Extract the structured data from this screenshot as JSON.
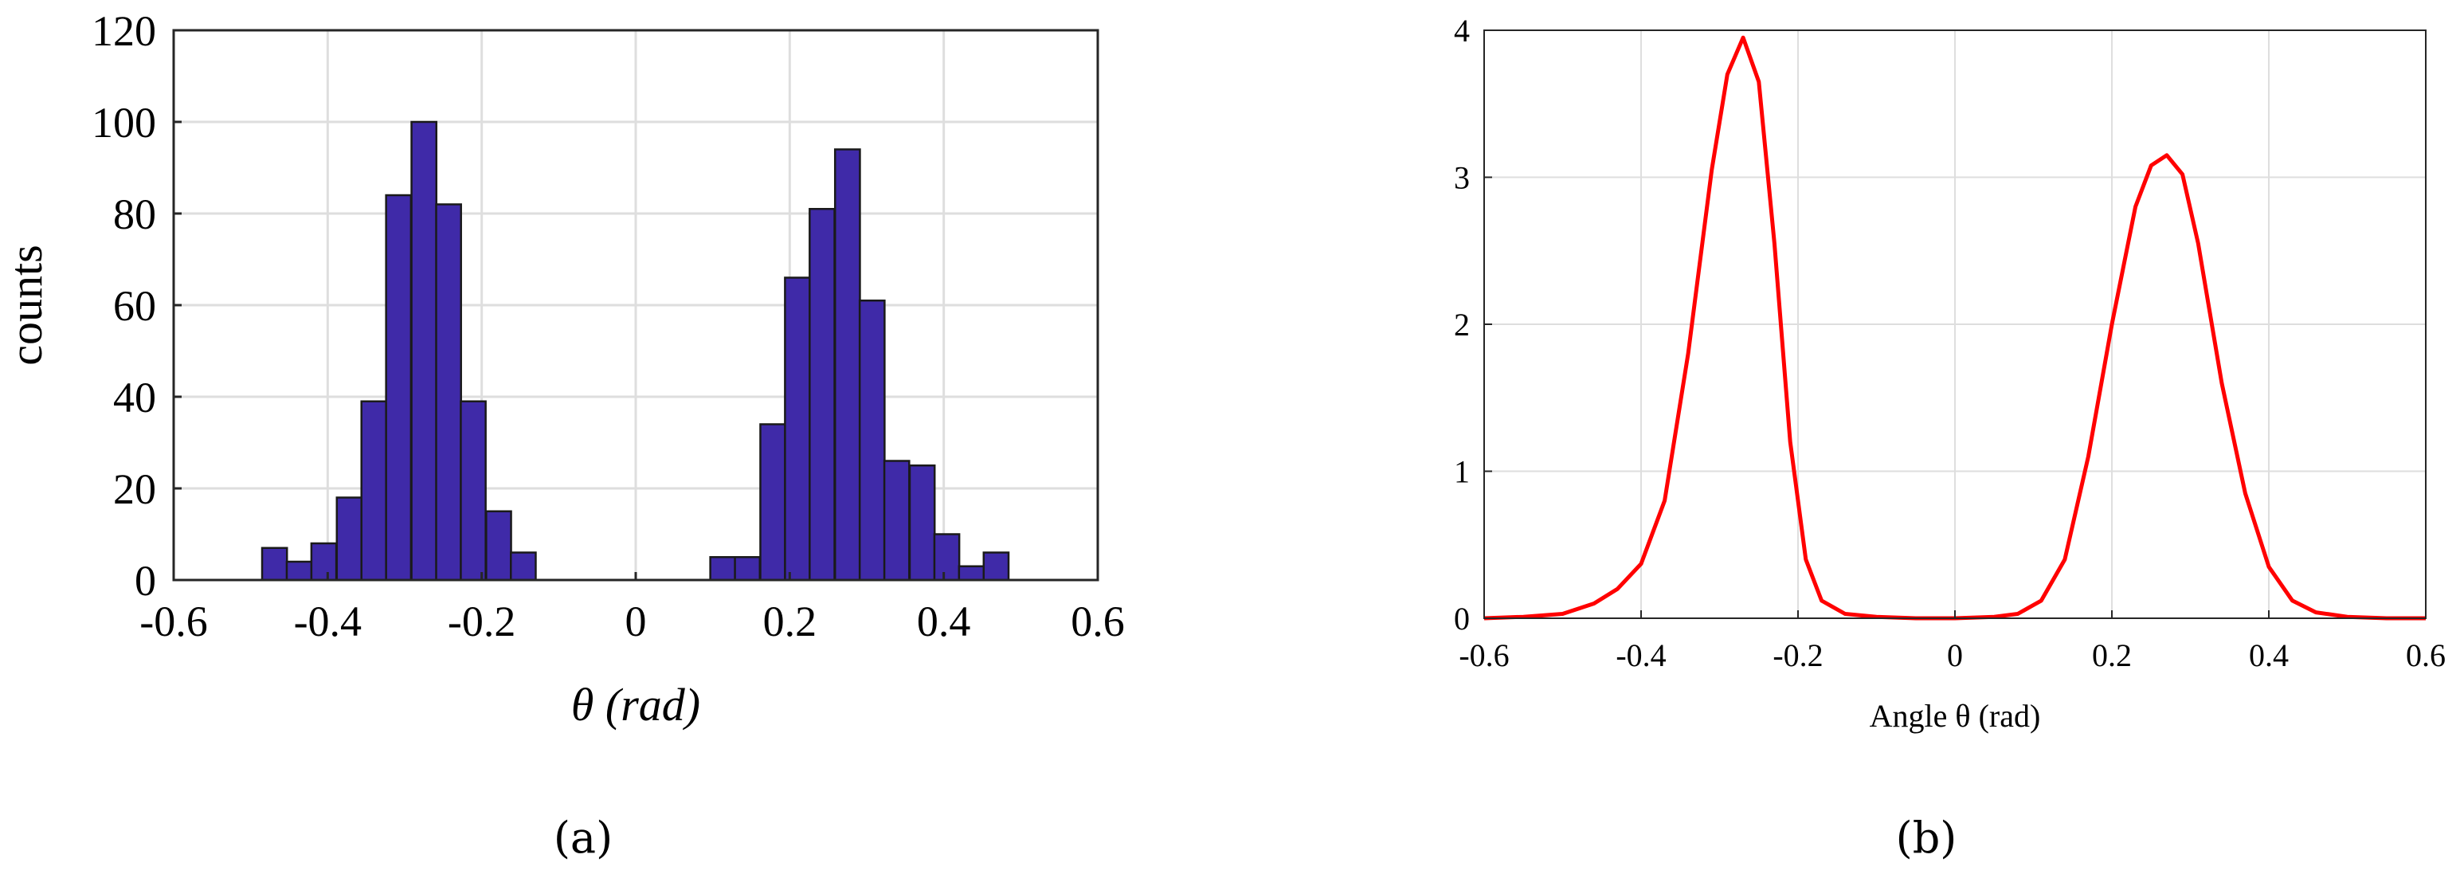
{
  "panel_a": {
    "caption": "(a)"
  },
  "panel_b": {
    "caption": "(b)"
  },
  "chart_data": [
    {
      "type": "bar",
      "xlabel": "θ (rad)",
      "ylabel": "counts",
      "xlim": [
        -0.6,
        0.6
      ],
      "ylim": [
        0,
        120
      ],
      "xticks": [
        "-0.6",
        "-0.4",
        "-0.2",
        "0",
        "0.2",
        "0.4",
        "0.6"
      ],
      "yticks": [
        "0",
        "20",
        "40",
        "60",
        "80",
        "100",
        "120"
      ],
      "grid": true,
      "bar_color": "#3f2aa8",
      "bin_width": 0.0323,
      "bin_centers": [
        -0.469,
        -0.437,
        -0.405,
        -0.372,
        -0.34,
        -0.308,
        -0.275,
        -0.243,
        -0.211,
        -0.178,
        -0.146,
        0.113,
        0.145,
        0.178,
        0.21,
        0.242,
        0.275,
        0.307,
        0.339,
        0.372,
        0.404,
        0.436,
        0.468
      ],
      "values": [
        7,
        4,
        8,
        18,
        39,
        84,
        100,
        82,
        39,
        15,
        6,
        5,
        5,
        34,
        66,
        81,
        94,
        61,
        26,
        25,
        10,
        3,
        6
      ]
    },
    {
      "type": "line",
      "xlabel": "Angle θ (rad)",
      "ylabel": "",
      "xlim": [
        -0.6,
        0.6
      ],
      "ylim": [
        0,
        4
      ],
      "xticks": [
        "-0.6",
        "-0.4",
        "-0.2",
        "0",
        "0.2",
        "0.4",
        "0.6"
      ],
      "yticks": [
        "0",
        "1",
        "2",
        "3",
        "4"
      ],
      "grid": true,
      "line_color": "#ff0000",
      "x": [
        -0.6,
        -0.55,
        -0.5,
        -0.46,
        -0.43,
        -0.4,
        -0.37,
        -0.34,
        -0.31,
        -0.29,
        -0.27,
        -0.25,
        -0.23,
        -0.21,
        -0.19,
        -0.17,
        -0.14,
        -0.1,
        -0.05,
        0,
        0.05,
        0.08,
        0.11,
        0.14,
        0.17,
        0.2,
        0.23,
        0.25,
        0.27,
        0.29,
        0.31,
        0.34,
        0.37,
        0.4,
        0.43,
        0.46,
        0.5,
        0.55,
        0.6
      ],
      "y": [
        0.0,
        0.01,
        0.03,
        0.1,
        0.2,
        0.37,
        0.8,
        1.8,
        3.05,
        3.7,
        3.95,
        3.65,
        2.55,
        1.2,
        0.4,
        0.12,
        0.03,
        0.01,
        0.0,
        0.0,
        0.01,
        0.03,
        0.12,
        0.4,
        1.1,
        2.0,
        2.8,
        3.08,
        3.15,
        3.02,
        2.55,
        1.6,
        0.85,
        0.35,
        0.12,
        0.04,
        0.01,
        0.0,
        0.0
      ]
    }
  ]
}
